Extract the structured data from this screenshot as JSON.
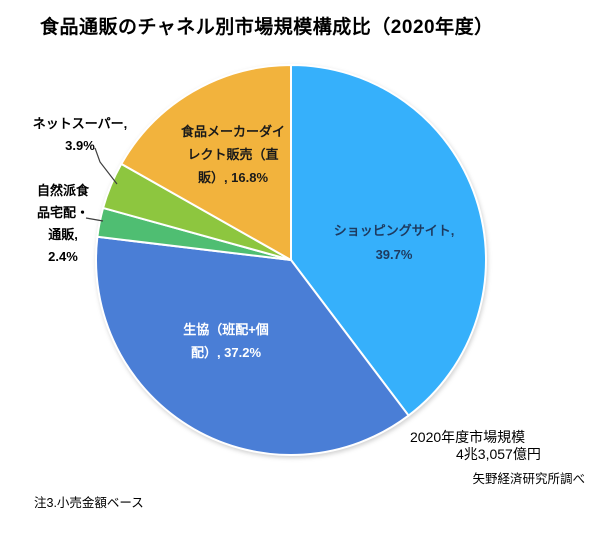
{
  "title": "食品通販のチャネル別市場規模構成比（2020年度）",
  "chart_data": {
    "type": "pie",
    "title": "食品通販のチャネル別市場規模構成比（2020年度）",
    "unit": "%",
    "start_angle_deg": 0,
    "direction": "clockwise",
    "slices": [
      {
        "name": "ショッピングサイト",
        "value": 39.7,
        "color": "#36B0FB"
      },
      {
        "name": "生協（班配+個配）",
        "value": 37.2,
        "color": "#4A7ED6"
      },
      {
        "name": "自然派食品宅配・通販",
        "value": 2.4,
        "color": "#4FBE72"
      },
      {
        "name": "ネットスーパー",
        "value": 3.9,
        "color": "#8DC63F"
      },
      {
        "name": "食品メーカーダイレクト販売（直販）",
        "value": 16.8,
        "color": "#F2B33D"
      }
    ],
    "annotations": [
      "2020年度市場規模 4兆3,057億円",
      "注3.小売金額ベース",
      "矢野経済研究所調べ"
    ],
    "legend": "none",
    "labels_on_chart": true
  },
  "labels": {
    "shopping": {
      "lines": [
        "ショッピングサイト,",
        "39.7%"
      ]
    },
    "seikyo": {
      "lines": [
        "生協（班配+個",
        "配）, 37.2%"
      ]
    },
    "shizenha": {
      "lines": [
        "自然派食",
        "品宅配・",
        "通販,",
        "2.4%"
      ]
    },
    "netsuper": {
      "lines": [
        "ネットスーパー,",
        "3.9%"
      ]
    },
    "maker": {
      "lines": [
        "食品メーカーダイ",
        "レクト販売（直",
        "販）, 16.8%"
      ]
    }
  },
  "notes": {
    "market_size_line1": "2020年度市場規模",
    "market_size_line2": "4兆3,057億円",
    "footnote": "注3.小売金額ベース",
    "source": "矢野経済研究所調べ"
  }
}
